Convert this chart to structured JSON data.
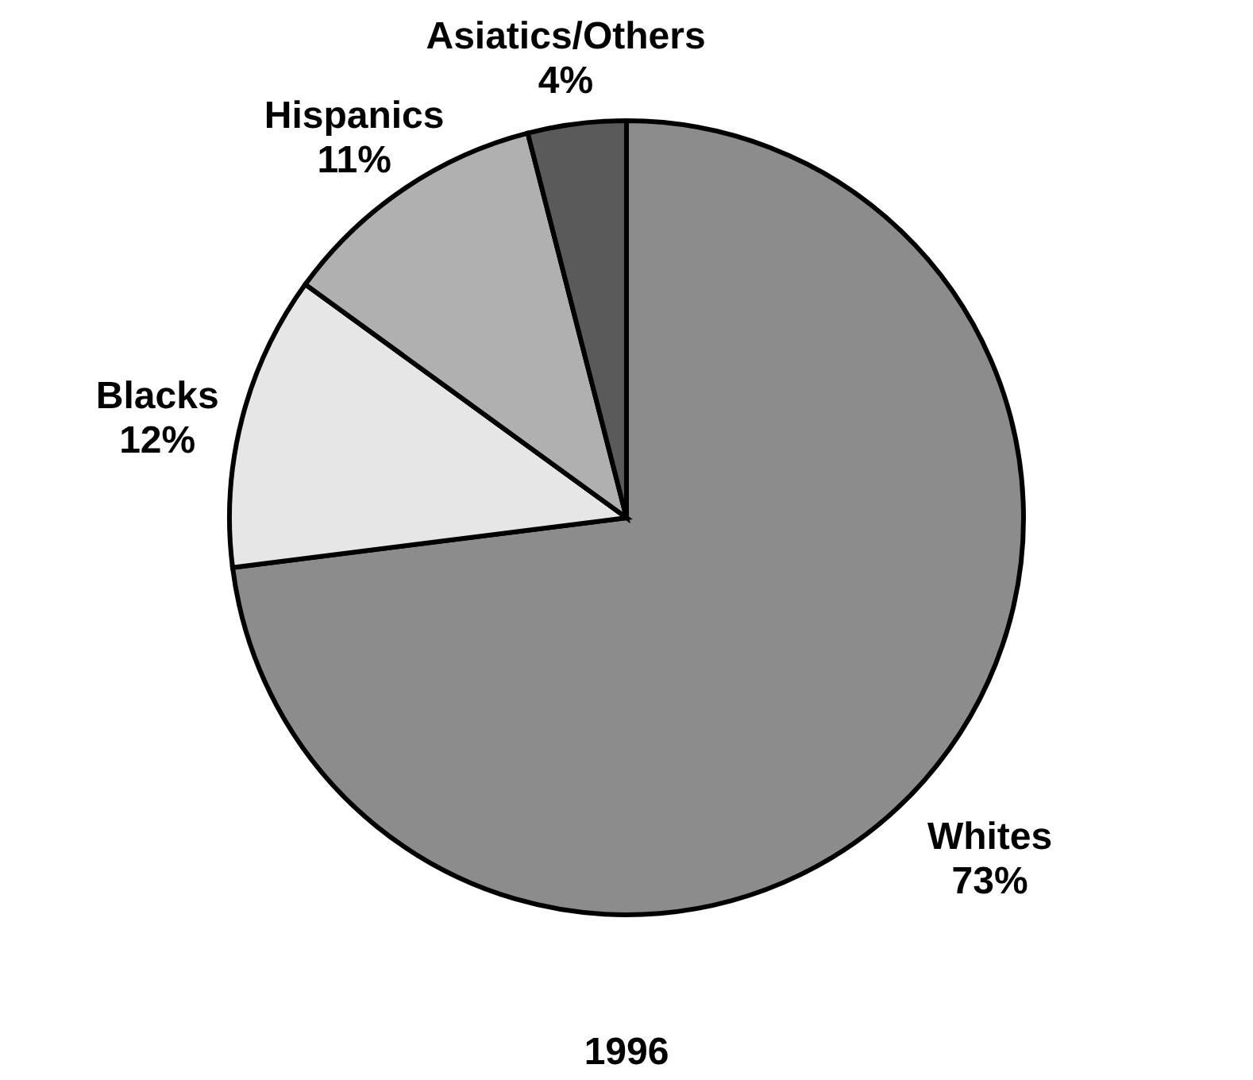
{
  "chart_data": {
    "type": "pie",
    "title": "1996",
    "categories": [
      "Whites",
      "Blacks",
      "Hispanics",
      "Asiatics/Others"
    ],
    "values": [
      73,
      12,
      11,
      4
    ],
    "value_labels": [
      "73%",
      "12%",
      "11%",
      "4%"
    ],
    "colors": [
      "#8c8c8c",
      "#e6e6e6",
      "#b0b0b0",
      "#5a5a5a"
    ],
    "legend": false
  }
}
